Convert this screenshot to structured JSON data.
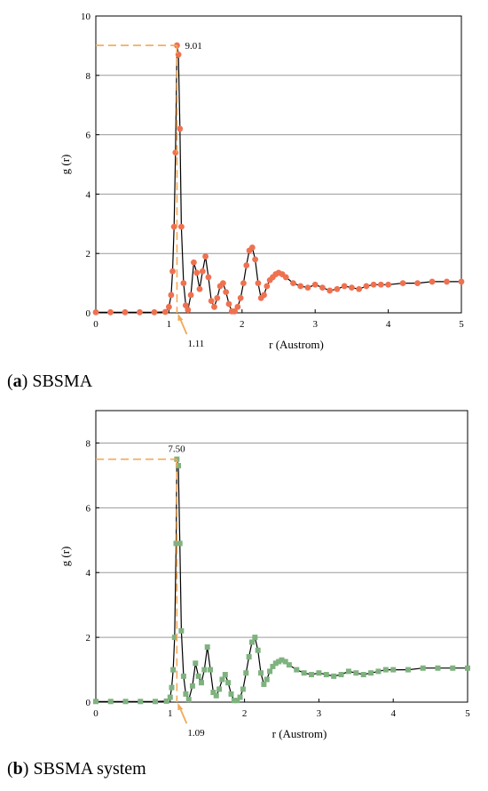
{
  "chart_data": [
    {
      "type": "line",
      "panel_letter": "a",
      "caption": "SBSMA",
      "xlabel": "r (Austrom)",
      "ylabel": "g (r)",
      "xlim": [
        0,
        5
      ],
      "ylim": [
        0,
        10
      ],
      "xticks": [
        "0",
        "1",
        "2",
        "3",
        "4",
        "5"
      ],
      "yticks": [
        "0",
        "2",
        "4",
        "6",
        "8",
        "10"
      ],
      "grid": "horizontal",
      "marker_color": "#ef7150",
      "marker_shape": "circle",
      "line_color": "#000000",
      "guide_color": "#f3a857",
      "peak_x_label": "1.11",
      "peak_y_label": "9.01",
      "peak": [
        1.11,
        9.01
      ],
      "x": [
        0.0,
        0.2,
        0.4,
        0.6,
        0.8,
        0.95,
        1.0,
        1.03,
        1.05,
        1.07,
        1.09,
        1.11,
        1.13,
        1.15,
        1.17,
        1.2,
        1.23,
        1.26,
        1.3,
        1.34,
        1.38,
        1.42,
        1.46,
        1.5,
        1.54,
        1.58,
        1.62,
        1.66,
        1.7,
        1.74,
        1.78,
        1.82,
        1.86,
        1.9,
        1.94,
        1.98,
        2.02,
        2.06,
        2.1,
        2.14,
        2.18,
        2.22,
        2.26,
        2.3,
        2.34,
        2.38,
        2.42,
        2.46,
        2.5,
        2.55,
        2.6,
        2.7,
        2.8,
        2.9,
        3.0,
        3.1,
        3.2,
        3.3,
        3.4,
        3.5,
        3.6,
        3.7,
        3.8,
        3.9,
        4.0,
        4.2,
        4.4,
        4.6,
        4.8,
        5.0
      ],
      "y": [
        0.02,
        0.02,
        0.02,
        0.02,
        0.02,
        0.03,
        0.2,
        0.6,
        1.4,
        2.9,
        5.4,
        9.01,
        8.7,
        6.2,
        2.9,
        1.0,
        0.25,
        0.1,
        0.6,
        1.7,
        1.35,
        0.8,
        1.4,
        1.9,
        1.2,
        0.4,
        0.2,
        0.5,
        0.9,
        1.0,
        0.7,
        0.3,
        0.05,
        0.05,
        0.2,
        0.5,
        1.0,
        1.6,
        2.1,
        2.2,
        1.8,
        1.0,
        0.5,
        0.6,
        0.9,
        1.1,
        1.2,
        1.3,
        1.35,
        1.3,
        1.2,
        1.0,
        0.9,
        0.85,
        0.95,
        0.85,
        0.75,
        0.8,
        0.9,
        0.85,
        0.8,
        0.9,
        0.95,
        0.95,
        0.95,
        1.0,
        1.0,
        1.05,
        1.05,
        1.05
      ]
    },
    {
      "type": "line",
      "panel_letter": "b",
      "caption": "SBSMA system",
      "xlabel": "r (Austrom)",
      "ylabel": "g (r)",
      "xlim": [
        0,
        5
      ],
      "ylim": [
        0,
        9
      ],
      "xticks": [
        "0",
        "1",
        "2",
        "3",
        "4",
        "5"
      ],
      "yticks": [
        "0",
        "2",
        "4",
        "6",
        "8"
      ],
      "grid": "horizontal",
      "marker_color": "#7fb27f",
      "marker_shape": "square",
      "line_color": "#000000",
      "guide_color": "#f3a857",
      "peak_x_label": "1.09",
      "peak_y_label": "7.50",
      "peak": [
        1.09,
        7.5
      ],
      "x": [
        0.0,
        0.2,
        0.4,
        0.6,
        0.8,
        0.95,
        1.0,
        1.02,
        1.04,
        1.06,
        1.08,
        1.09,
        1.11,
        1.13,
        1.15,
        1.18,
        1.21,
        1.25,
        1.3,
        1.34,
        1.38,
        1.42,
        1.46,
        1.5,
        1.54,
        1.58,
        1.62,
        1.66,
        1.7,
        1.74,
        1.78,
        1.82,
        1.86,
        1.9,
        1.94,
        1.98,
        2.02,
        2.06,
        2.1,
        2.14,
        2.18,
        2.22,
        2.26,
        2.3,
        2.34,
        2.38,
        2.42,
        2.46,
        2.5,
        2.55,
        2.6,
        2.7,
        2.8,
        2.9,
        3.0,
        3.1,
        3.2,
        3.3,
        3.4,
        3.5,
        3.6,
        3.7,
        3.8,
        3.9,
        4.0,
        4.2,
        4.4,
        4.6,
        4.8,
        5.0
      ],
      "y": [
        0.02,
        0.02,
        0.02,
        0.02,
        0.02,
        0.03,
        0.15,
        0.45,
        1.0,
        2.0,
        4.9,
        7.5,
        7.3,
        4.9,
        2.2,
        0.8,
        0.25,
        0.08,
        0.5,
        1.2,
        0.8,
        0.6,
        1.0,
        1.7,
        1.0,
        0.3,
        0.2,
        0.4,
        0.7,
        0.85,
        0.6,
        0.25,
        0.05,
        0.05,
        0.15,
        0.4,
        0.9,
        1.4,
        1.85,
        2.0,
        1.6,
        0.9,
        0.55,
        0.7,
        0.95,
        1.1,
        1.2,
        1.25,
        1.3,
        1.25,
        1.15,
        1.0,
        0.9,
        0.85,
        0.9,
        0.85,
        0.8,
        0.85,
        0.95,
        0.9,
        0.85,
        0.9,
        0.95,
        1.0,
        1.0,
        1.0,
        1.05,
        1.05,
        1.05,
        1.05
      ]
    }
  ]
}
